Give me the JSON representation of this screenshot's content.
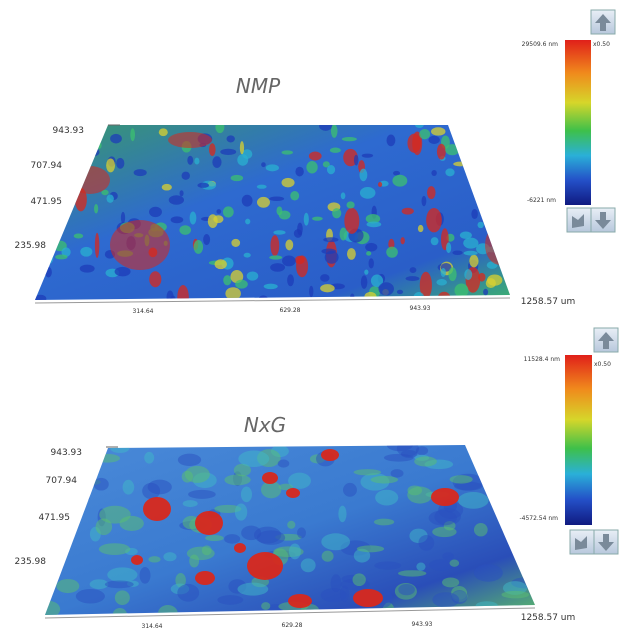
{
  "panels": [
    {
      "title": "NMP",
      "y_labels": [
        "943.93",
        "707.94",
        "471.95",
        "235.98"
      ],
      "x_labels": [
        "314.64",
        "629.28",
        "943.93",
        "1258.57 um"
      ],
      "colorbar": {
        "max": "29509.6 nm",
        "scale": "x0.50",
        "min": "-6221 nm"
      }
    },
    {
      "title": "NxG",
      "y_labels": [
        "943.93",
        "707.94",
        "471.95",
        "235.98"
      ],
      "x_labels": [
        "314.64",
        "629.28",
        "943.93",
        "1258.57 um"
      ],
      "colorbar": {
        "max": "11528.4 nm",
        "scale": "x0.50",
        "min": "-4572.54 nm"
      }
    }
  ]
}
